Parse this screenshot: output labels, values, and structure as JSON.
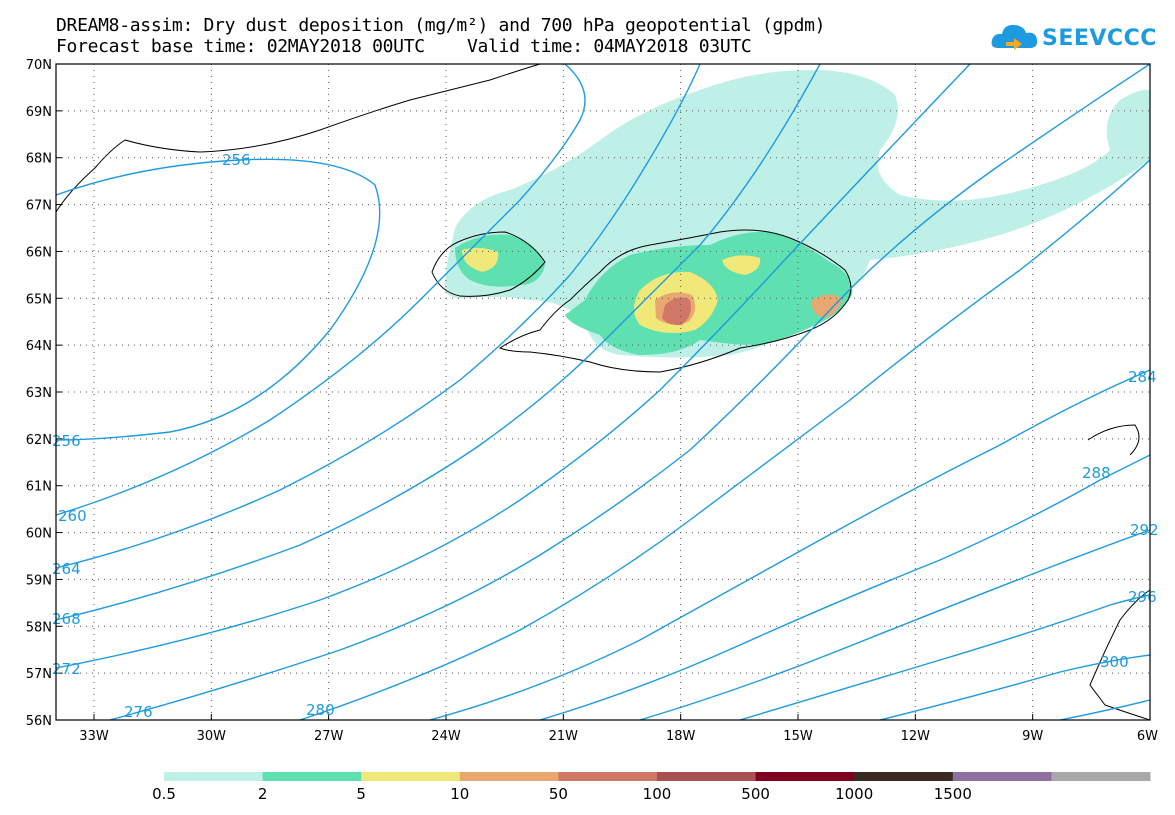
{
  "header": {
    "title_line1": "DREAM8-assim: Dry dust deposition (mg/m²) and 700 hPa geopotential (gpdm)",
    "title_line2": "Forecast base time: 02MAY2018 00UTC    Valid time: 04MAY2018 03UTC"
  },
  "logo": {
    "text": "SEEVCCC",
    "icon": "cloud-icon",
    "color": "#1e9be0"
  },
  "map": {
    "lat_labels": [
      "70N",
      "69N",
      "68N",
      "67N",
      "66N",
      "65N",
      "64N",
      "63N",
      "62N",
      "61N",
      "60N",
      "59N",
      "58N",
      "57N",
      "56N"
    ],
    "lon_labels": [
      "33W",
      "30W",
      "27W",
      "24W",
      "21W",
      "18W",
      "15W",
      "12W",
      "9W",
      "6W"
    ],
    "contour_color": "#1e9be0",
    "contour_labels": [
      "256",
      "256",
      "260",
      "264",
      "268",
      "272",
      "276",
      "280",
      "284",
      "288",
      "292",
      "296",
      "300"
    ]
  },
  "legend": {
    "thresholds": [
      "0.5",
      "2",
      "5",
      "10",
      "50",
      "100",
      "500",
      "1000",
      "1500"
    ],
    "colors": [
      "#bff0e8",
      "#5ee0b0",
      "#f0e878",
      "#e8a870",
      "#d07868",
      "#a85050",
      "#800020",
      "#3a2a20",
      "#8f6fa0",
      "#a8a8a8"
    ]
  }
}
